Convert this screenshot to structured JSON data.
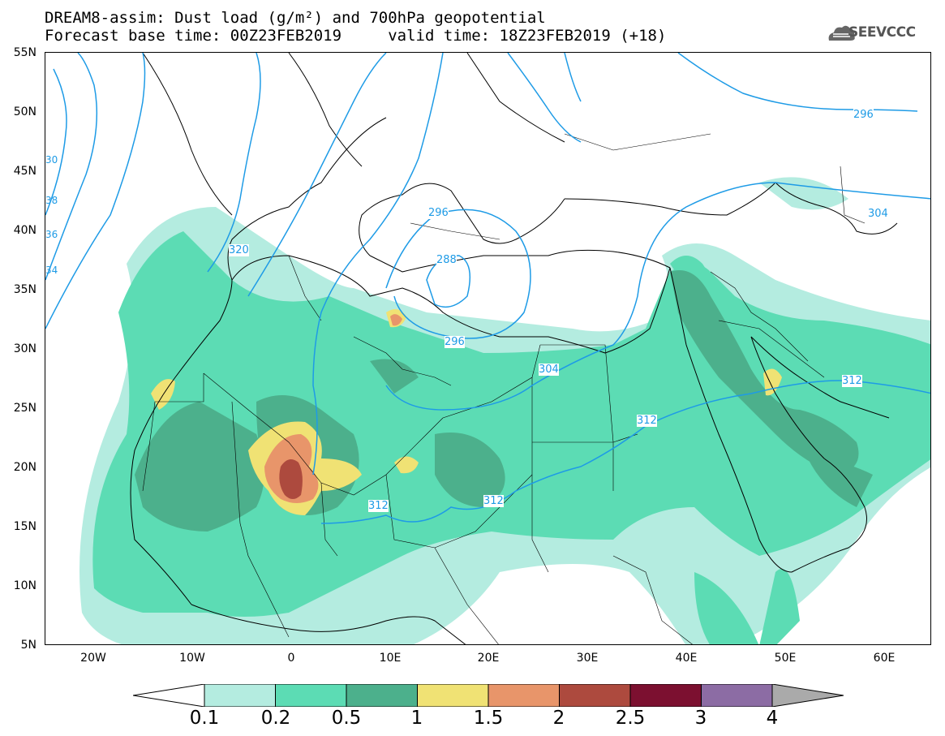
{
  "header": {
    "line1": "DREAM8-assim: Dust load (g/m²) and 700hPa geopotential",
    "line2": "Forecast base time: 00Z23FEB2019     valid time: 18Z23FEB2019 (+18)",
    "logo": "SEEVCCC"
  },
  "map": {
    "projection": "lat-lon",
    "lon_range": [
      -25,
      65
    ],
    "lat_range": [
      5,
      55
    ],
    "lat_labels": [
      "55N",
      "50N",
      "45N",
      "40N",
      "35N",
      "30N",
      "25N",
      "20N",
      "15N",
      "10N",
      "5N"
    ],
    "lon_labels": [
      "20W",
      "10W",
      "0",
      "10E",
      "20E",
      "30E",
      "40E",
      "50E",
      "60E"
    ],
    "contour_labels": [
      "296",
      "304",
      "312",
      "312",
      "312",
      "320",
      "296",
      "288",
      "296",
      "304",
      "30",
      "38",
      "36",
      "34"
    ]
  },
  "legend": {
    "labels": [
      "0.1",
      "0.2",
      "0.5",
      "1",
      "1.5",
      "2",
      "2.5",
      "3",
      "4"
    ],
    "colors": [
      "#b4ece0",
      "#5cdcb4",
      "#4cb08c",
      "#f0e274",
      "#e8956a",
      "#ad4a3e",
      "#7c1030",
      "#8c6ca4",
      "#aaaaaa"
    ]
  },
  "colors": {
    "contour": "#1e9be6",
    "coast": "#000000"
  }
}
